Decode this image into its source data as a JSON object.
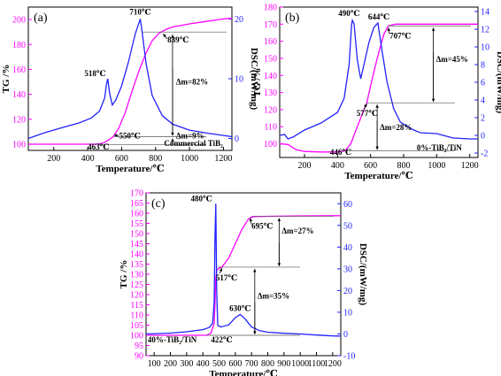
{
  "colors": {
    "tg": "#ff00ff",
    "dsc": "#2222ff",
    "axis": "#000000"
  },
  "chart_data": [
    {
      "panel_label": "(a)",
      "type": "line",
      "xlabel": "Temperature/℃",
      "ylabel_left": "TG /%",
      "ylabel_right": "DSC/(mW/mg)",
      "xlim": [
        50,
        1250
      ],
      "xticks": [
        200,
        400,
        600,
        800,
        1000,
        1200
      ],
      "ylim_left": [
        95,
        210
      ],
      "yticks_left": [
        100,
        120,
        140,
        160,
        180,
        200
      ],
      "ylim_right": [
        -2,
        22
      ],
      "yticks_right": [
        0,
        10,
        20
      ],
      "series": [
        {
          "axis": "left",
          "color": "#ff00ff",
          "x": [
            50,
            200,
            350,
            450,
            480,
            500,
            520,
            550,
            580,
            620,
            660,
            700,
            740,
            780,
            820,
            860,
            900,
            1000,
            1100,
            1200,
            1250
          ],
          "y": [
            100,
            100,
            100,
            100,
            100.5,
            101.5,
            103,
            106,
            112,
            125,
            142,
            158,
            172,
            183,
            189,
            192,
            194,
            196.5,
            198.5,
            200.5,
            201
          ]
        },
        {
          "axis": "right",
          "color": "#2222ff",
          "x": [
            50,
            150,
            250,
            350,
            420,
            470,
            500,
            510,
            518,
            530,
            545,
            565,
            600,
            640,
            680,
            700,
            710,
            720,
            745,
            780,
            840,
            900,
            1000,
            1100,
            1200,
            1250
          ],
          "y": [
            0,
            1,
            1.8,
            2.6,
            3.4,
            4.6,
            6.8,
            9,
            10,
            7.4,
            5.6,
            6.4,
            8.8,
            12.8,
            17.5,
            19.2,
            20,
            18,
            12.4,
            7.2,
            3.8,
            2.4,
            1.4,
            0.9,
            0.5,
            0.3
          ]
        }
      ],
      "annotations": [
        {
          "text": "518℃",
          "x": 518,
          "axis": "right",
          "y": 10
        },
        {
          "text": "710℃",
          "x": 710,
          "axis": "right",
          "y": 20
        },
        {
          "text": "839℃",
          "x": 839,
          "axis": "left",
          "y": 190
        },
        {
          "text": "550℃",
          "x": 550,
          "axis": "left",
          "y": 106
        },
        {
          "text": "463℃",
          "x": 463,
          "axis": "left",
          "y": 100
        },
        {
          "text": "Δm=82%"
        },
        {
          "text": "Δm=9%"
        },
        {
          "text": "Commercial TiB₂"
        }
      ]
    },
    {
      "panel_label": "(b)",
      "type": "line",
      "xlabel": "Temperature/℃",
      "ylabel_left": "TG /%",
      "ylabel_right": "DSC/(mW/mg)",
      "xlim": [
        50,
        1250
      ],
      "xticks": [
        200,
        400,
        600,
        800,
        1000,
        1200
      ],
      "ylim_left": [
        92,
        180
      ],
      "yticks_left": [
        100,
        110,
        120,
        130,
        140,
        150,
        160,
        170,
        180
      ],
      "ylim_right": [
        -2.5,
        14.5
      ],
      "yticks_right": [
        -2,
        0,
        2,
        4,
        6,
        8,
        10,
        12,
        14
      ],
      "series": [
        {
          "axis": "left",
          "color": "#ff00ff",
          "x": [
            50,
            100,
            150,
            200,
            300,
            400,
            446,
            480,
            520,
            560,
            577,
            600,
            640,
            680,
            707,
            750,
            850,
            1000,
            1100,
            1200,
            1250
          ],
          "y": [
            100,
            99.6,
            96.5,
            95.5,
            95.2,
            95.2,
            96,
            100,
            110,
            120,
            124,
            134,
            150,
            164,
            169,
            170,
            170,
            170,
            170,
            170,
            170
          ]
        },
        {
          "axis": "right",
          "color": "#2222ff",
          "x": [
            50,
            80,
            100,
            130,
            200,
            300,
            400,
            440,
            470,
            485,
            490,
            500,
            520,
            540,
            560,
            590,
            620,
            644,
            670,
            700,
            740,
            780,
            850,
            900,
            1000,
            1100,
            1200,
            1250
          ],
          "y": [
            0,
            0.1,
            -0.4,
            -0.2,
            0.6,
            1.4,
            2.6,
            4.2,
            8,
            12.5,
            13,
            12.6,
            8.5,
            6.4,
            8,
            10.5,
            12.2,
            12.7,
            9.5,
            6,
            3,
            1.5,
            0.7,
            0.3,
            0.2,
            -0.3,
            -0.4,
            -0.4
          ]
        }
      ],
      "annotations": [
        {
          "text": "490℃",
          "x": 490,
          "axis": "right",
          "y": 13
        },
        {
          "text": "644℃",
          "x": 644,
          "axis": "right",
          "y": 12.7
        },
        {
          "text": "707℃",
          "x": 707,
          "axis": "left",
          "y": 169
        },
        {
          "text": "577℃",
          "x": 577,
          "axis": "left",
          "y": 124
        },
        {
          "text": "446℃",
          "x": 446,
          "axis": "left",
          "y": 96
        },
        {
          "text": "Δm=45%"
        },
        {
          "text": "Δm=28%"
        },
        {
          "text": "0%-TiB₂/TiN"
        }
      ]
    },
    {
      "panel_label": "(c)",
      "type": "line",
      "xlabel": "Temperature/℃",
      "ylabel_left": "TG /%",
      "ylabel_right": "DSC/(mW/mg)",
      "xlim": [
        50,
        1250
      ],
      "xticks": [
        100,
        200,
        300,
        400,
        500,
        600,
        700,
        800,
        900,
        1000,
        1100,
        1200
      ],
      "ylim_left": [
        90,
        170
      ],
      "yticks_left": [
        90,
        95,
        100,
        105,
        110,
        115,
        120,
        125,
        130,
        135,
        140,
        145,
        150,
        155,
        160,
        165,
        170
      ],
      "ylim_right": [
        -10,
        65
      ],
      "yticks_right": [
        -10,
        0,
        10,
        20,
        30,
        40,
        50,
        60
      ],
      "series": [
        {
          "axis": "left",
          "color": "#ff00ff",
          "x": [
            50,
            200,
            350,
            422,
            450,
            470,
            476,
            480,
            485,
            500,
            517,
            560,
            600,
            640,
            680,
            695,
            720,
            800,
            1000,
            1200,
            1250
          ],
          "y": [
            100,
            100,
            100,
            100,
            101,
            106,
            118,
            128,
            132,
            133,
            133.5,
            138,
            145,
            152,
            157,
            158,
            158.3,
            158.5,
            158.7,
            158.8,
            158.8
          ]
        },
        {
          "axis": "right",
          "color": "#2222ff",
          "x": [
            50,
            200,
            300,
            400,
            440,
            460,
            470,
            475,
            480,
            485,
            492,
            510,
            560,
            600,
            630,
            660,
            700,
            750,
            800,
            900,
            1000,
            1100,
            1200,
            1250
          ],
          "y": [
            0,
            0.4,
            1,
            2,
            3,
            5,
            15,
            45,
            60,
            20,
            4,
            3.2,
            4.2,
            7.5,
            9,
            7,
            3.2,
            1.5,
            0.8,
            0.3,
            0,
            -0.5,
            -0.9,
            -1
          ]
        }
      ],
      "annotations": [
        {
          "text": "480℃",
          "x": 480,
          "axis": "right",
          "y": 60
        },
        {
          "text": "695℃",
          "x": 695,
          "axis": "left",
          "y": 158
        },
        {
          "text": "517℃",
          "x": 517,
          "axis": "left",
          "y": 133.5
        },
        {
          "text": "630℃",
          "x": 630,
          "axis": "right",
          "y": 9
        },
        {
          "text": "422℃",
          "x": 422,
          "axis": "left",
          "y": 100
        },
        {
          "text": "Δm=27%"
        },
        {
          "text": "Δm=35%"
        },
        {
          "text": "40%-TiB₂/TiN"
        }
      ]
    }
  ]
}
